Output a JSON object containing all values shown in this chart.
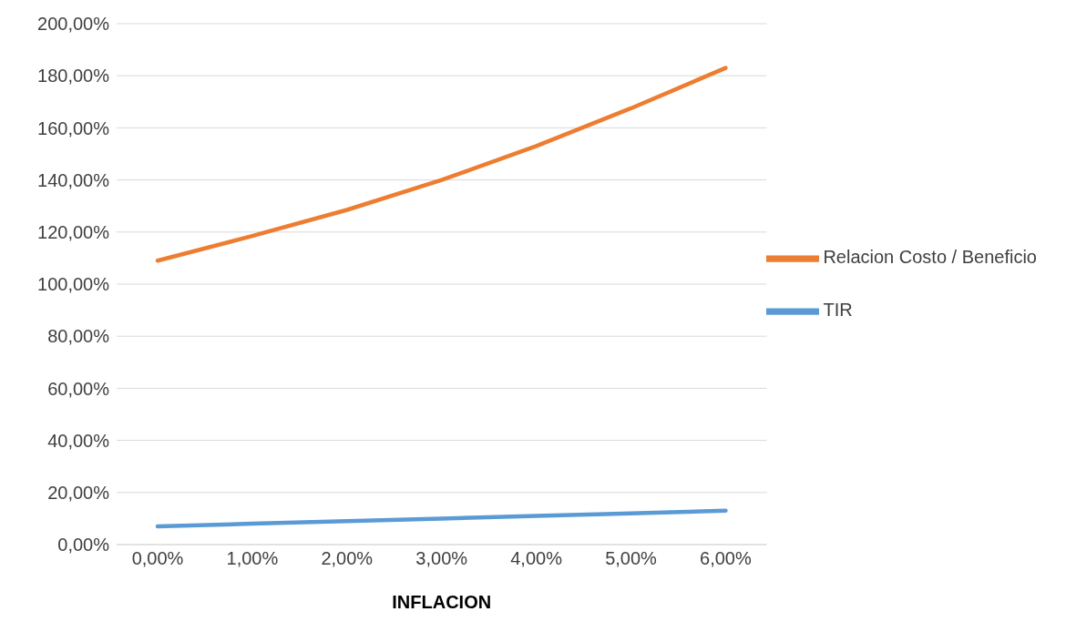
{
  "chart_data": {
    "type": "line",
    "xlabel": "INFLACION",
    "categories": [
      "0,00%",
      "1,00%",
      "2,00%",
      "3,00%",
      "4,00%",
      "5,00%",
      "6,00%"
    ],
    "series": [
      {
        "name": "TIR",
        "color": "#5b9bd5",
        "values": [
          7,
          8,
          9,
          10,
          11,
          12,
          13
        ]
      },
      {
        "name": "Relacion Costo / Beneficio",
        "color": "#ed7d31",
        "values": [
          109,
          118.5,
          128.5,
          140,
          153,
          167.5,
          183
        ]
      }
    ],
    "ylim": [
      0,
      200
    ],
    "yticks": [
      {
        "value": 0,
        "label": "0,00%"
      },
      {
        "value": 20,
        "label": "20,00%"
      },
      {
        "value": 40,
        "label": "40,00%"
      },
      {
        "value": 60,
        "label": "60,00%"
      },
      {
        "value": 80,
        "label": "80,00%"
      },
      {
        "value": 100,
        "label": "100,00%"
      },
      {
        "value": 120,
        "label": "120,00%"
      },
      {
        "value": 140,
        "label": "140,00%"
      },
      {
        "value": 160,
        "label": "160,00%"
      },
      {
        "value": 180,
        "label": "180,00%"
      },
      {
        "value": 200,
        "label": "200,00%"
      }
    ],
    "grid": "y",
    "legend": "right",
    "marker": "none",
    "line_style": "solid"
  }
}
